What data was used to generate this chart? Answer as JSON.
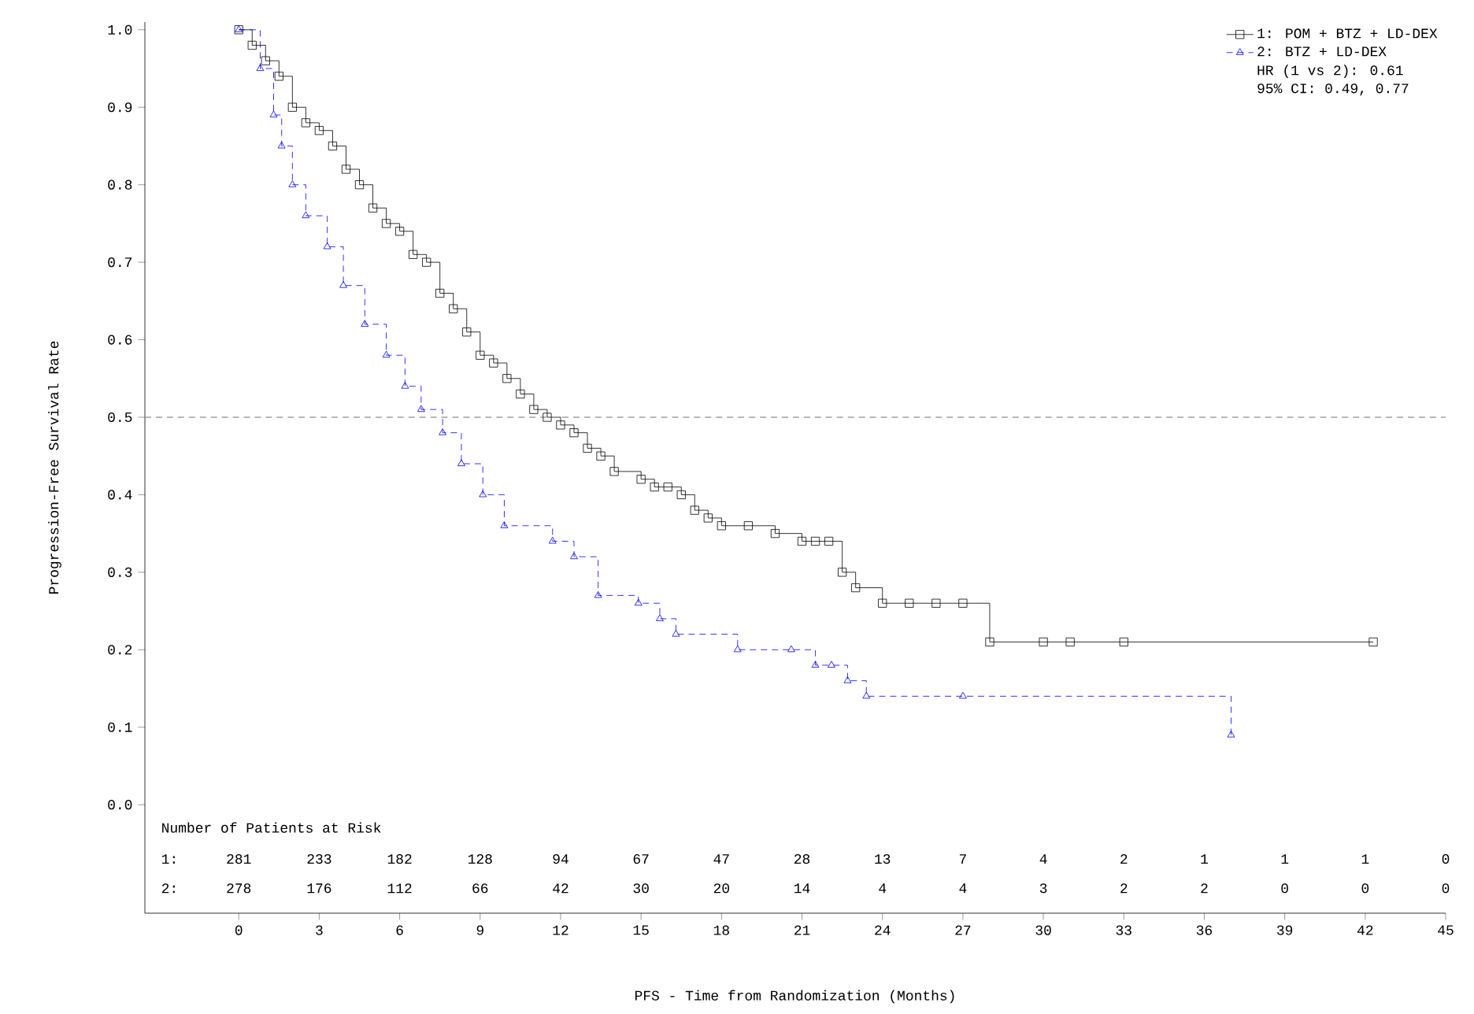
{
  "chart_data": {
    "type": "step",
    "xlabel": "PFS - Time from Randomization (Months)",
    "ylabel": "Progression-Free Survival Rate",
    "xlim": [
      -3.5,
      45
    ],
    "ylim": [
      -0.14,
      1.01
    ],
    "xticks": [
      0,
      3,
      6,
      9,
      12,
      15,
      18,
      21,
      24,
      27,
      30,
      33,
      36,
      39,
      42,
      45
    ],
    "yticks": [
      {
        "value": 0,
        "label": "0.0"
      },
      {
        "value": 0.1,
        "label": "0.1"
      },
      {
        "value": 0.2,
        "label": "0.2"
      },
      {
        "value": 0.3,
        "label": "0.3"
      },
      {
        "value": 0.4,
        "label": "0.4"
      },
      {
        "value": 0.5,
        "label": "0.5"
      },
      {
        "value": 0.6,
        "label": "0.6"
      },
      {
        "value": 0.7,
        "label": "0.7"
      },
      {
        "value": 0.8,
        "label": "0.8"
      },
      {
        "value": 0.9,
        "label": "0.9"
      },
      {
        "value": 1,
        "label": "1.0"
      }
    ],
    "legend": "top right",
    "grid": false,
    "ref_lines": [
      {
        "axis": "y",
        "value": 0.5,
        "color": "#a0a0a0",
        "line_style": "dashed"
      }
    ],
    "series": [
      {
        "name": "1: POM + BTZ + LD-DEX",
        "color": "#000000",
        "marker": "square",
        "line_style": "solid",
        "x": [
          0,
          0.5,
          1,
          1.5,
          2,
          2.5,
          3,
          3.5,
          4,
          4.5,
          5,
          5.5,
          6,
          6.5,
          7,
          7.5,
          8,
          8.5,
          9,
          9.5,
          10,
          10.5,
          11,
          11.5,
          12,
          12.5,
          13,
          13.5,
          14,
          15,
          15.5,
          16,
          16.5,
          17,
          17.5,
          18,
          19,
          20,
          21,
          21.5,
          22,
          22.5,
          23,
          24,
          25,
          26,
          27,
          28,
          30,
          31,
          33,
          42.3
        ],
        "values": [
          1.0,
          0.98,
          0.96,
          0.94,
          0.9,
          0.88,
          0.87,
          0.85,
          0.82,
          0.8,
          0.77,
          0.75,
          0.74,
          0.71,
          0.7,
          0.66,
          0.64,
          0.61,
          0.58,
          0.57,
          0.55,
          0.53,
          0.51,
          0.5,
          0.49,
          0.48,
          0.46,
          0.45,
          0.43,
          0.42,
          0.41,
          0.41,
          0.4,
          0.38,
          0.37,
          0.36,
          0.36,
          0.35,
          0.34,
          0.34,
          0.34,
          0.3,
          0.28,
          0.26,
          0.26,
          0.26,
          0.26,
          0.21,
          0.21,
          0.21,
          0.21,
          0.21
        ]
      },
      {
        "name": "2: BTZ + LD-DEX",
        "color": "#0000ff",
        "marker": "triangle",
        "line_style": "dashed",
        "x": [
          0,
          0.8,
          1.3,
          1.6,
          2.0,
          2.5,
          3.3,
          3.9,
          4.7,
          5.5,
          6.2,
          6.8,
          7.6,
          8.3,
          9.1,
          9.9,
          11.7,
          12.5,
          13.4,
          14.9,
          15.7,
          16.3,
          18.6,
          20.6,
          21.5,
          22.1,
          22.7,
          23.4,
          27,
          37
        ],
        "values": [
          1.0,
          0.95,
          0.89,
          0.85,
          0.8,
          0.76,
          0.72,
          0.67,
          0.62,
          0.58,
          0.54,
          0.51,
          0.48,
          0.44,
          0.4,
          0.36,
          0.34,
          0.32,
          0.27,
          0.26,
          0.24,
          0.22,
          0.2,
          0.2,
          0.18,
          0.18,
          0.16,
          0.14,
          0.14,
          0.09
        ]
      }
    ],
    "annotations": [
      "Number of Patients at Risk",
      "1:",
      "281",
      "233",
      "182",
      "128",
      "94",
      "67",
      "47",
      "28",
      "13",
      "7",
      "4",
      "2",
      "1",
      "1",
      "1",
      "0",
      "2:",
      "278",
      "176",
      "112",
      "66",
      "42",
      "30",
      "20",
      "14",
      "4",
      "4",
      "3",
      "2",
      "2",
      "0",
      "0",
      "0",
      "HR (1 vs 2): 0.61",
      "95% CI:      0.49, 0.77"
    ]
  }
}
